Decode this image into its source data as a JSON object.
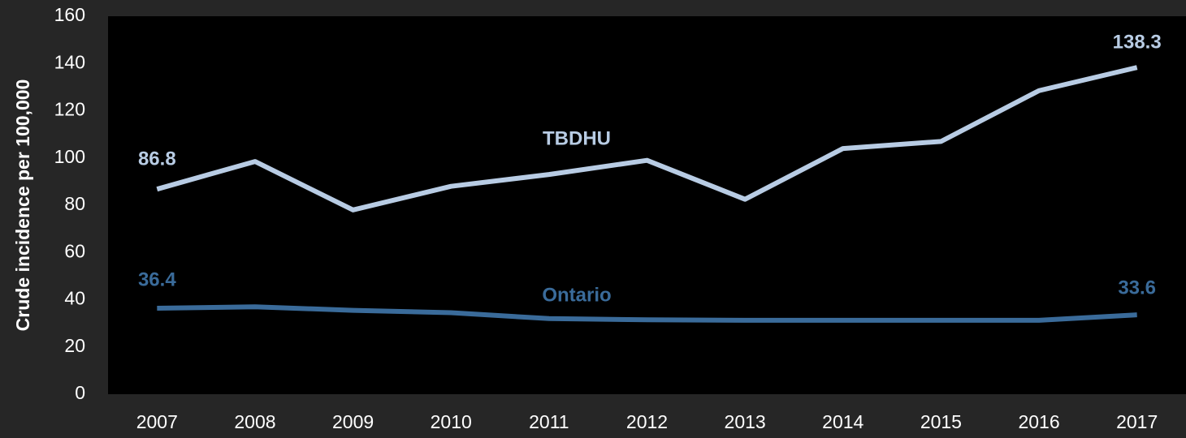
{
  "chart_data": {
    "type": "line",
    "ylabel": "Crude incidence per 100,000",
    "categories": [
      "2007",
      "2008",
      "2009",
      "2010",
      "2011",
      "2012",
      "2013",
      "2014",
      "2015",
      "2016",
      "2017"
    ],
    "series": [
      {
        "name": "TBDHU",
        "color": "#b8cce4",
        "values": [
          86.8,
          98.5,
          78,
          88,
          93,
          99,
          82.5,
          104,
          107,
          128.5,
          138.3
        ]
      },
      {
        "name": "Ontario",
        "color": "#3a6b9a",
        "values": [
          36.4,
          37,
          35.5,
          34.5,
          32,
          31.5,
          31.3,
          31.3,
          31.3,
          31.3,
          33.6
        ]
      }
    ],
    "ylim": [
      0,
      160
    ],
    "yticks": [
      0,
      20,
      40,
      60,
      80,
      100,
      120,
      140,
      160
    ]
  }
}
